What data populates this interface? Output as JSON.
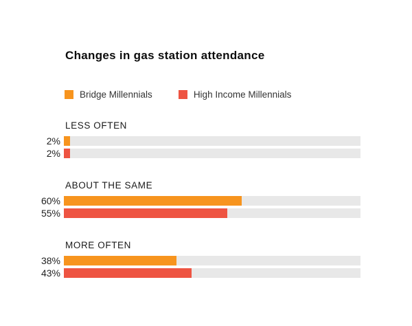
{
  "title": "Changes in gas station attendance",
  "colors": {
    "bridge_orange": "#F7941E",
    "high_income_red": "#EE5442",
    "track_gray": "#E8E8E8"
  },
  "legend": [
    {
      "name": "Bridge Millennials",
      "color": "#F7941E"
    },
    {
      "name": "High Income Millennials",
      "color": "#EE5442"
    }
  ],
  "chart_data": {
    "type": "bar",
    "orientation": "horizontal",
    "title": "Changes in gas station attendance",
    "categories": [
      "LESS OFTEN",
      "ABOUT THE SAME",
      "MORE OFTEN"
    ],
    "series": [
      {
        "name": "Bridge Millennials",
        "color": "#F7941E",
        "values": [
          2,
          60,
          38
        ]
      },
      {
        "name": "High Income Millennials",
        "color": "#EE5442",
        "values": [
          2,
          55,
          43
        ]
      }
    ],
    "value_format": "percent",
    "xlim": [
      0,
      100
    ],
    "grid": false,
    "legend_position": "top",
    "track_color": "#E8E8E8"
  },
  "sections": [
    {
      "label": "LESS OFTEN",
      "bars": [
        {
          "series": "Bridge Millennials",
          "value_label": "2%",
          "pct": 2
        },
        {
          "series": "High Income Millennials",
          "value_label": "2%",
          "pct": 2
        }
      ]
    },
    {
      "label": "ABOUT THE SAME",
      "bars": [
        {
          "series": "Bridge Millennials",
          "value_label": "60%",
          "pct": 60
        },
        {
          "series": "High Income Millennials",
          "value_label": "55%",
          "pct": 55
        }
      ]
    },
    {
      "label": "MORE OFTEN",
      "bars": [
        {
          "series": "Bridge Millennials",
          "value_label": "38%",
          "pct": 38
        },
        {
          "series": "High Income Millennials",
          "value_label": "43%",
          "pct": 43
        }
      ]
    }
  ]
}
